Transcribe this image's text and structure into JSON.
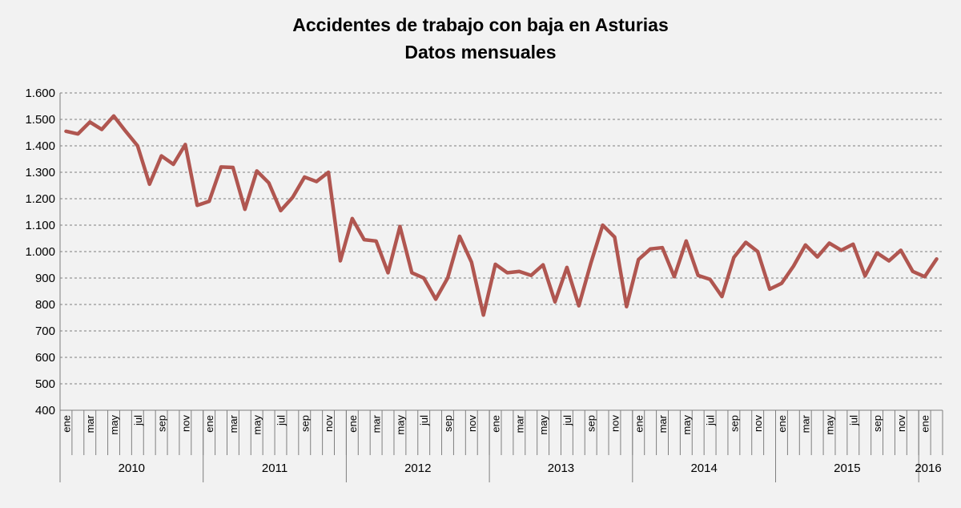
{
  "chart_data": {
    "type": "line",
    "title": "Accidentes de trabajo con baja en Asturias",
    "subtitle": "Datos mensuales",
    "xlabel": "",
    "ylabel": "",
    "ylim": [
      400,
      1600
    ],
    "y_ticks": [
      "400",
      "500",
      "600",
      "700",
      "800",
      "900",
      "1.000",
      "1.100",
      "1.200",
      "1.300",
      "1.400",
      "1.500",
      "1.600"
    ],
    "y_tick_values": [
      400,
      500,
      600,
      700,
      800,
      900,
      1000,
      1100,
      1200,
      1300,
      1400,
      1500,
      1600
    ],
    "grid": true,
    "legend": "none",
    "line_color": "#b05650",
    "years": [
      {
        "label": "2010",
        "start": 0,
        "months": 12
      },
      {
        "label": "2011",
        "start": 12,
        "months": 12
      },
      {
        "label": "2012",
        "start": 24,
        "months": 12
      },
      {
        "label": "2013",
        "start": 36,
        "months": 12
      },
      {
        "label": "2014",
        "start": 48,
        "months": 12
      },
      {
        "label": "2015",
        "start": 60,
        "months": 12
      },
      {
        "label": "2016",
        "start": 72,
        "months": 2
      }
    ],
    "month_labels": [
      "ene",
      "",
      "mar",
      "",
      "may",
      "",
      "jul",
      "",
      "sep",
      "",
      "nov",
      ""
    ],
    "series": [
      {
        "values": [
          1455,
          1445,
          1490,
          1462,
          1513,
          1455,
          1400,
          1255,
          1362,
          1330,
          1405,
          1175,
          1190,
          1320,
          1318,
          1160,
          1305,
          1260,
          1155,
          1205,
          1282,
          1265,
          1300,
          965,
          1125,
          1045,
          1040,
          920,
          1095,
          920,
          900,
          820,
          900,
          1058,
          960,
          760,
          952,
          920,
          925,
          910,
          950,
          810,
          940,
          795,
          955,
          1100,
          1055,
          792,
          970,
          1010,
          1015,
          905,
          1040,
          910,
          895,
          830,
          978,
          1035,
          1000,
          858,
          880,
          945,
          1025,
          980,
          1032,
          1005,
          1028,
          908,
          995,
          965,
          1005,
          925,
          905,
          972
        ]
      }
    ]
  }
}
